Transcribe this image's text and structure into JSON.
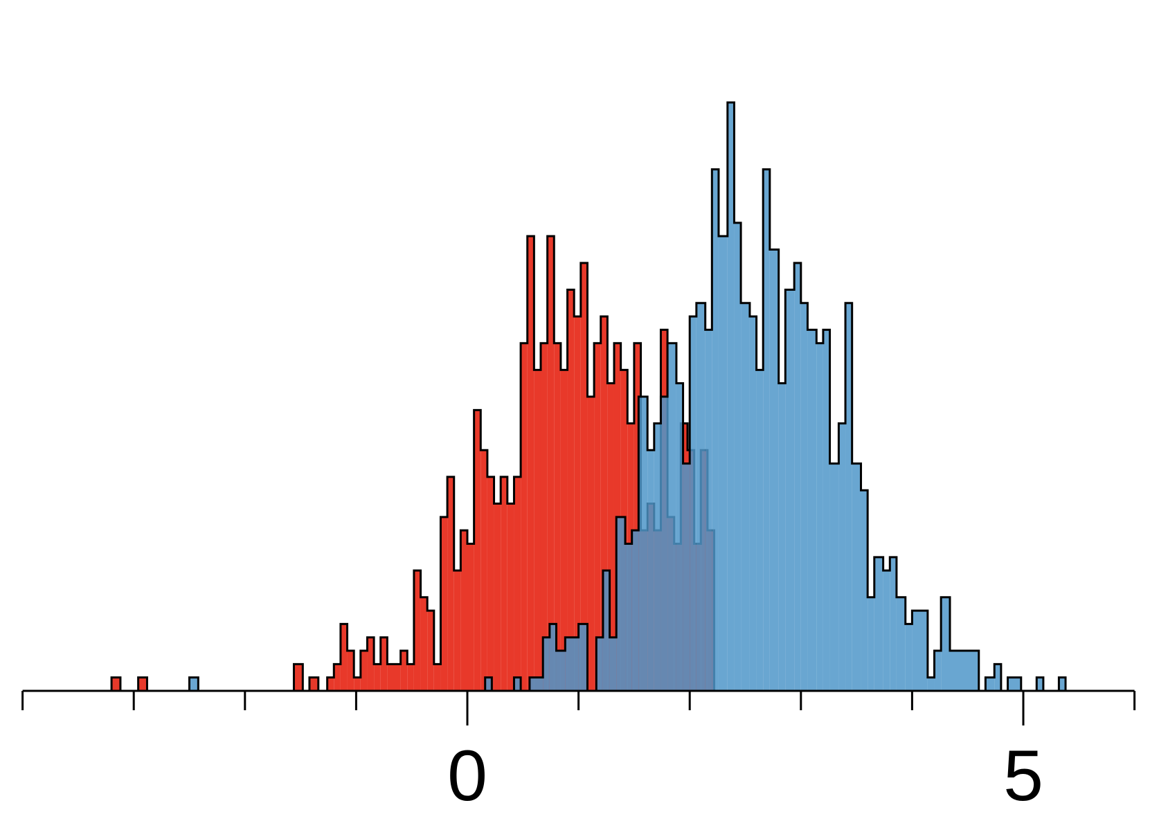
{
  "chart_data": {
    "type": "histogram",
    "title": "",
    "xlabel": "",
    "ylabel": "",
    "xlim": [
      -2,
      3
    ],
    "ylim": [
      0,
      44
    ],
    "grid": false,
    "legend": "none",
    "y_axis_visible": false,
    "bin_width": 0.066,
    "tick_values": [
      -2.0,
      -1.0,
      0.0,
      1.0,
      2.0,
      3.0,
      4.0,
      5.0,
      6.0,
      7.0,
      8.0
    ],
    "tick_labels": [
      {
        "value": 0,
        "text": "0"
      },
      {
        "value": 5,
        "text": "5"
      }
    ],
    "series": [
      {
        "color": "#e8392a",
        "edgecolor": "#000000",
        "alpha": 1.0,
        "bins": [
          [
            -3.2,
            -3.12,
            1
          ],
          [
            -3.12,
            -2.96,
            0
          ],
          [
            -2.96,
            -2.88,
            1
          ],
          [
            -2.88,
            -1.56,
            0
          ],
          [
            -1.56,
            -1.48,
            2
          ],
          [
            -1.48,
            -1.42,
            0
          ],
          [
            -1.42,
            -1.34,
            1
          ],
          [
            -1.34,
            -1.26,
            0
          ],
          [
            -1.26,
            -1.2,
            1
          ],
          [
            -1.2,
            -1.14,
            2
          ],
          [
            -1.14,
            -1.08,
            5
          ],
          [
            -1.08,
            -1.02,
            3
          ],
          [
            -1.02,
            -0.96,
            1
          ],
          [
            -0.96,
            -0.9,
            3
          ],
          [
            -0.9,
            -0.84,
            4
          ],
          [
            -0.84,
            -0.78,
            2
          ],
          [
            -0.78,
            -0.72,
            4
          ],
          [
            -0.72,
            -0.66,
            2
          ],
          [
            -0.66,
            -0.6,
            2
          ],
          [
            -0.6,
            -0.54,
            3
          ],
          [
            -0.54,
            -0.48,
            2
          ],
          [
            -0.48,
            -0.42,
            9
          ],
          [
            -0.42,
            -0.36,
            7
          ],
          [
            -0.36,
            -0.3,
            6
          ],
          [
            -0.3,
            -0.24,
            2
          ],
          [
            -0.24,
            -0.18,
            13
          ],
          [
            -0.18,
            -0.12,
            16
          ],
          [
            -0.12,
            -0.06,
            9
          ],
          [
            -0.06,
            0.0,
            12
          ],
          [
            0.0,
            0.06,
            11
          ],
          [
            0.06,
            0.12,
            21
          ],
          [
            0.12,
            0.18,
            18
          ],
          [
            0.18,
            0.24,
            16
          ],
          [
            0.24,
            0.3,
            14
          ],
          [
            0.3,
            0.36,
            16
          ],
          [
            0.36,
            0.42,
            14
          ],
          [
            0.42,
            0.48,
            16
          ],
          [
            0.48,
            0.54,
            26
          ],
          [
            0.54,
            0.6,
            34
          ],
          [
            0.6,
            0.66,
            24
          ],
          [
            0.66,
            0.72,
            26
          ],
          [
            0.72,
            0.78,
            34
          ],
          [
            0.78,
            0.84,
            26
          ],
          [
            0.84,
            0.9,
            24
          ],
          [
            0.9,
            0.96,
            30
          ],
          [
            0.96,
            1.02,
            28
          ],
          [
            1.02,
            1.08,
            32
          ],
          [
            1.08,
            1.14,
            22
          ],
          [
            1.14,
            1.2,
            26
          ],
          [
            1.2,
            1.26,
            28
          ],
          [
            1.26,
            1.32,
            23
          ],
          [
            1.32,
            1.38,
            26
          ],
          [
            1.38,
            1.44,
            24
          ],
          [
            1.44,
            1.5,
            20
          ],
          [
            1.5,
            1.56,
            26
          ],
          [
            1.56,
            1.62,
            12
          ],
          [
            1.62,
            1.68,
            14
          ],
          [
            1.68,
            1.74,
            12
          ],
          [
            1.74,
            1.8,
            27
          ],
          [
            1.8,
            1.86,
            13
          ],
          [
            1.86,
            1.92,
            11
          ],
          [
            1.92,
            1.98,
            20
          ],
          [
            1.98,
            2.04,
            18
          ],
          [
            2.04,
            2.1,
            11
          ],
          [
            2.1,
            2.16,
            18
          ],
          [
            2.16,
            2.22,
            12
          ]
        ]
      },
      {
        "color": "#4f97c9",
        "edgecolor": "#000000",
        "alpha": 0.85,
        "bins": [
          [
            -2.5,
            -2.42,
            1
          ],
          [
            -2.42,
            0.16,
            0
          ],
          [
            0.16,
            0.22,
            1
          ],
          [
            0.22,
            0.42,
            0
          ],
          [
            0.42,
            0.48,
            1
          ],
          [
            0.48,
            0.56,
            0
          ],
          [
            0.56,
            0.68,
            1
          ],
          [
            0.68,
            0.74,
            4
          ],
          [
            0.74,
            0.8,
            5
          ],
          [
            0.8,
            0.88,
            3
          ],
          [
            0.88,
            1.0,
            4
          ],
          [
            1.0,
            1.08,
            5
          ],
          [
            1.08,
            1.16,
            0
          ],
          [
            1.16,
            1.22,
            4
          ],
          [
            1.22,
            1.28,
            9
          ],
          [
            1.28,
            1.34,
            4
          ],
          [
            1.34,
            1.42,
            13
          ],
          [
            1.42,
            1.48,
            11
          ],
          [
            1.48,
            1.54,
            12
          ],
          [
            1.54,
            1.62,
            22
          ],
          [
            1.62,
            1.68,
            18
          ],
          [
            1.68,
            1.74,
            20
          ],
          [
            1.74,
            1.8,
            22
          ],
          [
            1.8,
            1.88,
            26
          ],
          [
            1.88,
            1.94,
            23
          ],
          [
            1.94,
            2.0,
            17
          ],
          [
            2.0,
            2.06,
            28
          ],
          [
            2.06,
            2.14,
            29
          ],
          [
            2.14,
            2.2,
            27
          ],
          [
            2.2,
            2.26,
            39
          ],
          [
            2.26,
            2.34,
            34
          ],
          [
            2.34,
            2.4,
            44
          ],
          [
            2.4,
            2.46,
            35
          ],
          [
            2.46,
            2.54,
            29
          ],
          [
            2.54,
            2.6,
            28
          ],
          [
            2.6,
            2.66,
            24
          ],
          [
            2.66,
            2.72,
            39
          ],
          [
            2.72,
            2.8,
            33
          ],
          [
            2.8,
            2.86,
            23
          ],
          [
            2.86,
            2.94,
            30
          ],
          [
            2.94,
            3.0,
            32
          ],
          [
            3.0,
            3.06,
            29
          ],
          [
            3.06,
            3.14,
            27
          ],
          [
            3.14,
            3.2,
            26
          ],
          [
            3.2,
            3.26,
            27
          ],
          [
            3.26,
            3.34,
            17
          ],
          [
            3.34,
            3.4,
            20
          ],
          [
            3.4,
            3.46,
            29
          ],
          [
            3.46,
            3.54,
            17
          ],
          [
            3.54,
            3.6,
            15
          ],
          [
            3.6,
            3.66,
            7
          ],
          [
            3.66,
            3.74,
            10
          ],
          [
            3.74,
            3.8,
            9
          ],
          [
            3.8,
            3.86,
            10
          ],
          [
            3.86,
            3.94,
            7
          ],
          [
            3.94,
            4.0,
            5
          ],
          [
            4.0,
            4.14,
            6
          ],
          [
            4.14,
            4.2,
            1
          ],
          [
            4.2,
            4.26,
            3
          ],
          [
            4.26,
            4.34,
            7
          ],
          [
            4.34,
            4.6,
            3
          ],
          [
            4.6,
            4.66,
            0
          ],
          [
            4.66,
            4.74,
            1
          ],
          [
            4.74,
            4.8,
            2
          ],
          [
            4.8,
            4.86,
            0
          ],
          [
            4.86,
            4.98,
            1
          ],
          [
            4.98,
            5.12,
            0
          ],
          [
            5.12,
            5.18,
            1
          ],
          [
            5.18,
            5.32,
            0
          ],
          [
            5.32,
            5.38,
            1
          ]
        ]
      }
    ]
  }
}
